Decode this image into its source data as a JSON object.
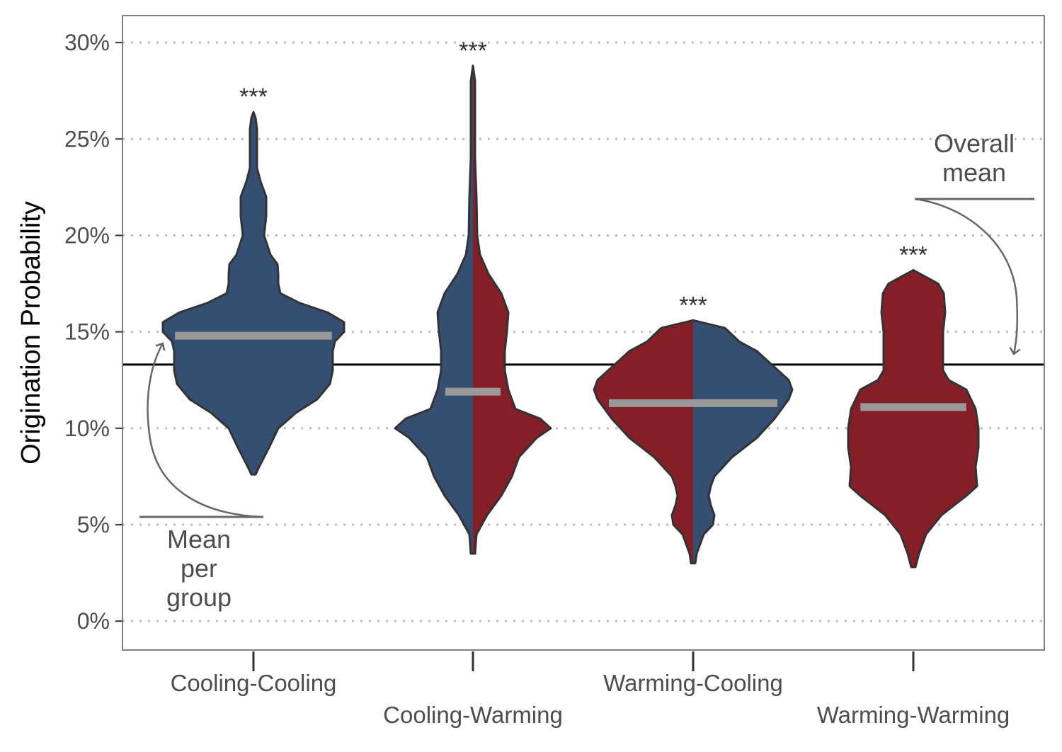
{
  "chart_data": {
    "type": "violin",
    "ylabel": "Origination Probability",
    "y_ticks": [
      "0%",
      "5%",
      "10%",
      "15%",
      "20%",
      "25%",
      "30%"
    ],
    "y_tick_values": [
      0,
      5,
      10,
      15,
      20,
      25,
      30
    ],
    "ylim": [
      -1.5,
      31.4
    ],
    "grid": "horizontal dotted",
    "overall_mean": 13.3,
    "colors": {
      "cooling": "#354f73",
      "warming": "#841f27",
      "mean_bar": "#999999",
      "outline": "#333333"
    },
    "groups": [
      {
        "label": "Cooling-Cooling",
        "halves": {
          "left": "cooling",
          "right": "cooling"
        },
        "mean": 14.8,
        "significance": "***",
        "profile": [
          [
            7.6,
            3
          ],
          [
            8,
            8
          ],
          [
            9,
            22
          ],
          [
            10,
            35
          ],
          [
            10.8,
            60
          ],
          [
            11.5,
            90
          ],
          [
            12.3,
            108
          ],
          [
            13,
            112
          ],
          [
            14,
            112
          ],
          [
            14.5,
            115
          ],
          [
            15,
            128
          ],
          [
            15.5,
            128
          ],
          [
            16,
            105
          ],
          [
            16.5,
            65
          ],
          [
            17,
            38
          ],
          [
            17.5,
            35
          ],
          [
            18,
            35
          ],
          [
            18.5,
            34
          ],
          [
            19,
            24
          ],
          [
            20,
            15
          ],
          [
            21,
            18
          ],
          [
            22,
            18
          ],
          [
            22.8,
            10
          ],
          [
            23.5,
            5
          ],
          [
            24.5,
            5
          ],
          [
            25.5,
            5
          ],
          [
            26.1,
            3
          ],
          [
            26.4,
            0
          ]
        ]
      },
      {
        "label": "Cooling-Warming",
        "halves": {
          "left": "cooling",
          "right": "warming"
        },
        "mean": 11.9,
        "significance": "***",
        "profile": [
          [
            3.5,
            3
          ],
          [
            4.5,
            5
          ],
          [
            5.5,
            20
          ],
          [
            6.5,
            40
          ],
          [
            7.5,
            55
          ],
          [
            8.5,
            65
          ],
          [
            9.5,
            90
          ],
          [
            10,
            110
          ],
          [
            10.5,
            95
          ],
          [
            11,
            60
          ],
          [
            12,
            50
          ],
          [
            13,
            45
          ],
          [
            14,
            45
          ],
          [
            15,
            48
          ],
          [
            16,
            50
          ],
          [
            17,
            40
          ],
          [
            18,
            22
          ],
          [
            19,
            10
          ],
          [
            20,
            6
          ],
          [
            22,
            5
          ],
          [
            24,
            3
          ],
          [
            26,
            3
          ],
          [
            28,
            3
          ],
          [
            28.8,
            0
          ]
        ]
      },
      {
        "label": "Warming-Cooling",
        "halves": {
          "left": "warming",
          "right": "cooling"
        },
        "mean": 11.3,
        "significance": "***",
        "profile": [
          [
            3,
            3
          ],
          [
            3.5,
            5
          ],
          [
            4.5,
            15
          ],
          [
            5,
            28
          ],
          [
            5.5,
            30
          ],
          [
            6,
            25
          ],
          [
            6.5,
            22
          ],
          [
            7,
            25
          ],
          [
            7.5,
            30
          ],
          [
            8.5,
            55
          ],
          [
            9.5,
            90
          ],
          [
            10.5,
            115
          ],
          [
            11.5,
            135
          ],
          [
            12,
            140
          ],
          [
            12.5,
            135
          ],
          [
            13,
            120
          ],
          [
            14,
            90
          ],
          [
            14.5,
            65
          ],
          [
            15.2,
            45
          ],
          [
            15.6,
            0
          ]
        ]
      },
      {
        "label": "Warming-Warming",
        "halves": {
          "left": "warming",
          "right": "warming"
        },
        "mean": 11.1,
        "significance": "***",
        "profile": [
          [
            2.8,
            3
          ],
          [
            3.5,
            8
          ],
          [
            4.5,
            18
          ],
          [
            5.5,
            40
          ],
          [
            6.5,
            75
          ],
          [
            7,
            90
          ],
          [
            8,
            88
          ],
          [
            9,
            92
          ],
          [
            10,
            92
          ],
          [
            11,
            88
          ],
          [
            12,
            75
          ],
          [
            12.5,
            50
          ],
          [
            13,
            42
          ],
          [
            14,
            42
          ],
          [
            15,
            42
          ],
          [
            16,
            45
          ],
          [
            17,
            43
          ],
          [
            17.5,
            35
          ],
          [
            18.2,
            0
          ]
        ]
      }
    ]
  },
  "annotations": {
    "group_mean_label": [
      "Mean",
      "per",
      "group"
    ],
    "overall_mean_label": [
      "Overall",
      "mean"
    ]
  }
}
